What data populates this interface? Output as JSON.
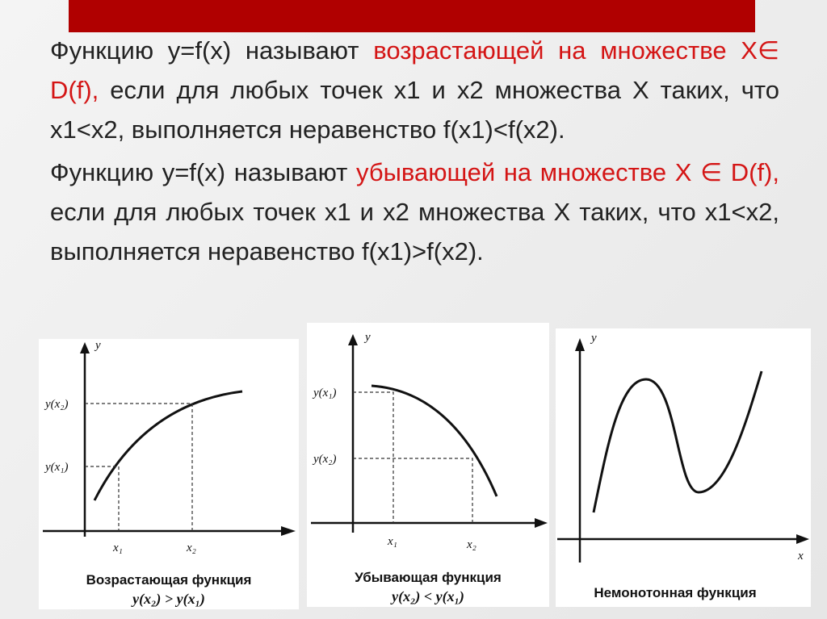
{
  "paragraphs": [
    {
      "parts": [
        "Функцию y=f(x) называют ",
        "возрастающей на множестве X∈ D(f),",
        " если для любых точек x1 и x2 множества X таких, что x1<x2, выполняется неравенство f(x1)<f(x2)."
      ]
    },
    {
      "parts": [
        "Функцию y=f(x) называют ",
        "убывающей на множестве X ∈ D(f),",
        " если для любых точек x1 и x2 множества X таких, что x1<x2, выполняется неравенство f(x1)>f(x2)."
      ]
    }
  ],
  "graphs": [
    {
      "y_axis": "y",
      "y_labels": [
        "y(x₂)",
        "y(x₁)"
      ],
      "x_labels": [
        "x₁",
        "x₂"
      ],
      "caption": "Возрастающая функция",
      "relation": "y(x₂) > y(x₁)"
    },
    {
      "y_axis": "y",
      "y_labels": [
        "y(x₁)",
        "y(x₂)"
      ],
      "x_labels": [
        "x₁",
        "x₂"
      ],
      "caption": "Убывающая функция",
      "relation": "y(x₂) < y(x₁)"
    },
    {
      "y_axis": "y",
      "x_axis": "x",
      "caption": "Немонотонная функция"
    }
  ]
}
